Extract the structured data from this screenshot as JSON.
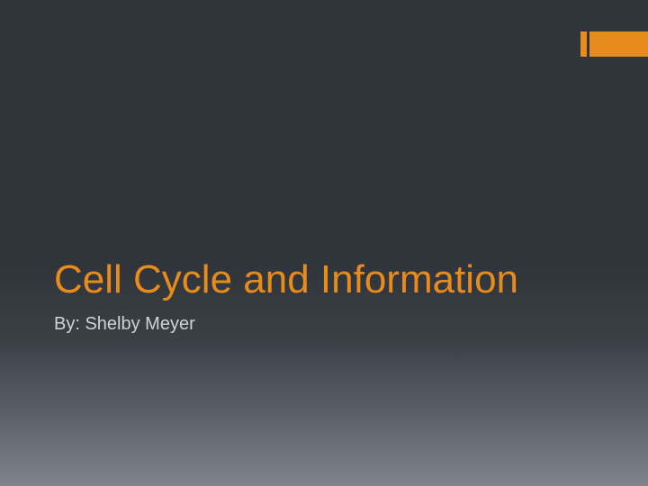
{
  "slide": {
    "title": "Cell Cycle and Information",
    "subtitle": "By: Shelby Meyer",
    "accent_color": "#e88b1a",
    "title_color": "#e88b1a",
    "subtitle_color": "#d0d3d6",
    "background_gradient_top": "#2f353b",
    "background_gradient_bottom": "#7e848c",
    "title_fontsize": 44,
    "subtitle_fontsize": 20
  }
}
